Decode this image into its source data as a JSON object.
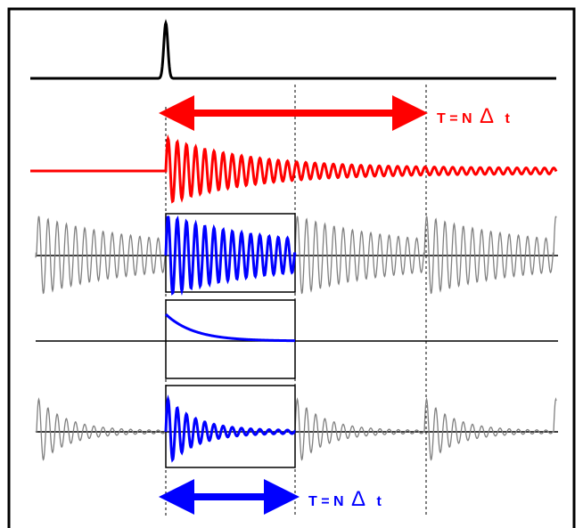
{
  "labels": {
    "top_span": {
      "prefix": "T = N",
      "delta": "Δ",
      "suffix": "t",
      "color": "#ff0000"
    },
    "bottom_span": {
      "prefix": "T = N",
      "delta": "Δ",
      "suffix": "t",
      "color": "#0000ff"
    }
  },
  "colors": {
    "frame": "#000000",
    "pulse": "#000000",
    "response": "#ff0000",
    "window": "#0000ff",
    "periodic": "#808080",
    "guide": "#000000"
  }
}
